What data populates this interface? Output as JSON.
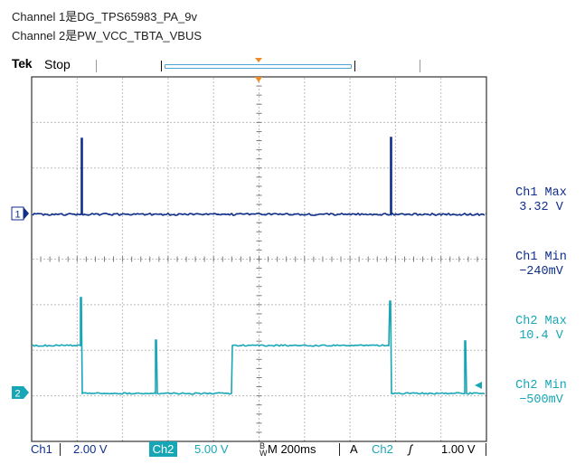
{
  "annotations": {
    "line1": "Channel 1是DG_TPS65983_PA_9v",
    "line2": "Channel 2是PW_VCC_TBTA_VBUS"
  },
  "header": {
    "brand": "Tek",
    "acquisition_state": "Stop"
  },
  "channel_markers": {
    "ch1": "1",
    "ch2": "2"
  },
  "measurements": [
    {
      "name": "Ch1 Max",
      "value": "3.32 V",
      "channel": "ch1"
    },
    {
      "name": "Ch1 Min",
      "value": "−240mV",
      "channel": "ch1"
    },
    {
      "name": "Ch2 Max",
      "value": "10.4 V",
      "channel": "ch2"
    },
    {
      "name": "Ch2 Min",
      "value": "−500mV",
      "channel": "ch2"
    }
  ],
  "status_bar": {
    "ch1_label": "Ch1",
    "ch1_scale": "2.00 V",
    "ch2_label": "Ch2",
    "ch2_scale": "5.00 V",
    "bw_flag_top": "B",
    "bw_flag_bottom": "W",
    "timebase": "M 200ms",
    "trigger_mode": "A",
    "trigger_source": "Ch2",
    "trigger_slope": "ʃ",
    "trigger_level": "1.00 V"
  },
  "colors": {
    "ch1": "#0f2e8a",
    "ch2": "#17a6b5",
    "trigger": "#f08a24",
    "grid_dots": "#7a7a7a",
    "frame": "#333333"
  }
}
